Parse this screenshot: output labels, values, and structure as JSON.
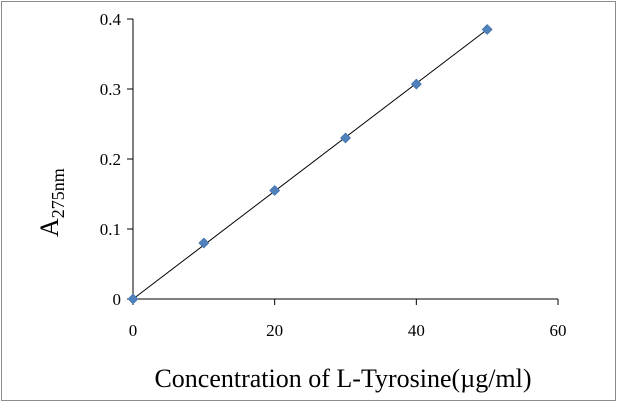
{
  "chart_data": {
    "type": "scatter",
    "title": "",
    "xlabel": "Concentration of L-Tyrosine(µg/ml)",
    "ylabel": {
      "main": "A",
      "subscript": "275nm"
    },
    "xlim": [
      0,
      60
    ],
    "ylim": [
      0,
      0.4
    ],
    "x_ticks": [
      "0",
      "20",
      "40",
      "60"
    ],
    "y_ticks": [
      "0",
      "0.1",
      "0.2",
      "0.3",
      "0.4"
    ],
    "grid": false,
    "legend": "none",
    "series": [
      {
        "marker": "diamond",
        "color": "#4f81bd",
        "x": [
          0,
          10,
          20,
          30,
          40,
          50
        ],
        "y": [
          0,
          0.08,
          0.155,
          0.23,
          0.307,
          0.385
        ]
      }
    ],
    "trendline": {
      "type": "linear",
      "color": "#000000",
      "x": [
        0,
        50
      ],
      "y": [
        0,
        0.385
      ]
    }
  }
}
